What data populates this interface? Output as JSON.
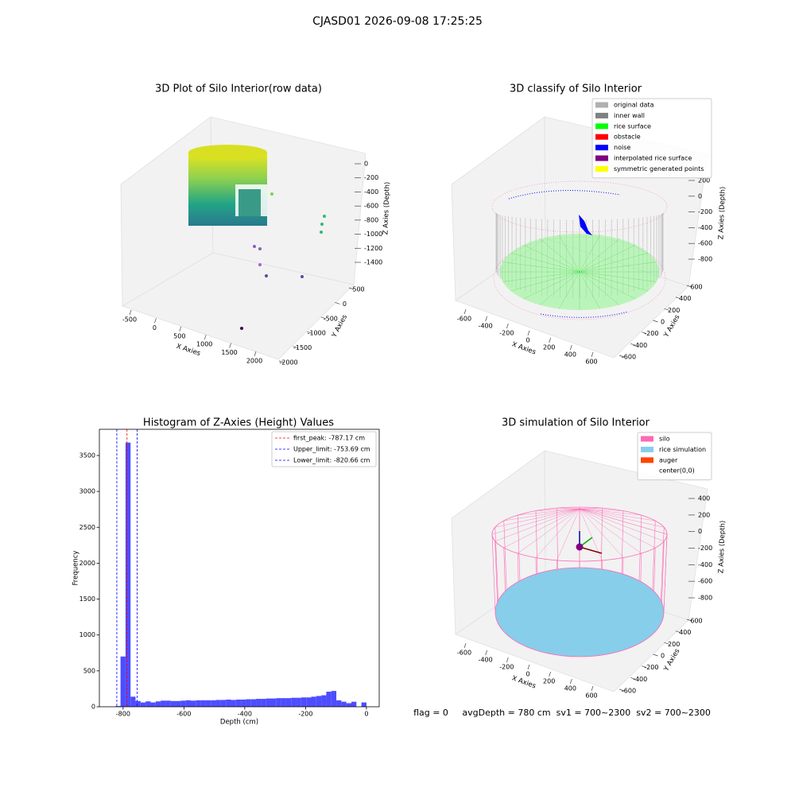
{
  "title": "CJASD01 2026-09-08 17:25:25",
  "footer": "flag = 0     avgDepth = 780 cm  sv1 = 700~2300  sv2 = 700~2300",
  "chart_data": [
    {
      "type": "scatter3d",
      "title": "3D Plot of Silo Interior(row data)",
      "xlabel": "X Axies",
      "ylabel": "Y Axies",
      "zlabel": "Z Axies (Depth)",
      "xticks": [
        -500,
        0,
        500,
        1000,
        1500,
        2000
      ],
      "yticks": [
        500,
        0,
        -500,
        -1000,
        -1500,
        -2000
      ],
      "zticks": [
        0,
        -200,
        -400,
        -600,
        -800,
        -1000,
        -1200,
        -1400
      ]
    },
    {
      "type": "scatter3d",
      "title": "3D classify of Silo Interior",
      "xlabel": "X Axies",
      "ylabel": "Y Axies",
      "zlabel": "Z Axies (Depth)",
      "xticks": [
        -600,
        -400,
        -200,
        0,
        200,
        400,
        600
      ],
      "yticks": [
        600,
        400,
        200,
        0,
        -200,
        -400,
        -600
      ],
      "zticks": [
        200,
        0,
        -200,
        -400,
        -600,
        -800
      ],
      "legend": [
        {
          "name": "original data",
          "color": "#b0b0b0"
        },
        {
          "name": "inner wall",
          "color": "#808080"
        },
        {
          "name": "rice surface",
          "color": "#00ff00"
        },
        {
          "name": "obstacle",
          "color": "#ff0000"
        },
        {
          "name": "noise",
          "color": "#0000ff"
        },
        {
          "name": "interpolated rice surface",
          "color": "#800080"
        },
        {
          "name": "symmetric generated points",
          "color": "#ffff00"
        }
      ]
    },
    {
      "type": "histogram",
      "title": "Histogram of Z-Axies (Height) Values",
      "xlabel": "Depth (cm)",
      "ylabel": "Frequency",
      "color": "#4d4dff",
      "xlim": [
        -878,
        42
      ],
      "ylim": [
        0,
        3865
      ],
      "xticks": [
        -800,
        -600,
        -400,
        -200,
        0
      ],
      "yticks": [
        0,
        500,
        1000,
        1500,
        2000,
        2500,
        3000,
        3500
      ],
      "bins": [
        -825,
        -808.5,
        -792,
        -775.5,
        -759,
        -742.5,
        -726,
        -709.5,
        -693,
        -676.5,
        -660,
        -643.5,
        -627,
        -610.5,
        -594,
        -577.5,
        -561,
        -544.5,
        -528,
        -511.5,
        -495,
        -478.5,
        -462,
        -445.5,
        -429,
        -412.5,
        -396,
        -379.5,
        -363,
        -346.5,
        -330,
        -313.5,
        -297,
        -280.5,
        -264,
        -247.5,
        -231,
        -214.5,
        -198,
        -181.5,
        -165,
        -148.5,
        -132,
        -115.5,
        -99,
        -82.5,
        -66,
        -49.5,
        -33,
        -16.5,
        0
      ],
      "counts": [
        10,
        700,
        3680,
        140,
        80,
        60,
        75,
        60,
        75,
        85,
        85,
        80,
        80,
        85,
        90,
        85,
        90,
        90,
        90,
        90,
        95,
        95,
        100,
        95,
        100,
        100,
        105,
        105,
        110,
        110,
        115,
        115,
        120,
        120,
        120,
        125,
        125,
        130,
        130,
        140,
        150,
        160,
        210,
        220,
        90,
        70,
        50,
        70,
        0,
        60
      ],
      "lines": [
        {
          "name": "first_peak: -787.17 cm",
          "value": -787.17,
          "color": "#ff0000"
        },
        {
          "name": "Upper_limit: -753.69 cm",
          "value": -753.69,
          "color": "#0000ff"
        },
        {
          "name": "Lower_limit: -820.66 cm",
          "value": -820.66,
          "color": "#0000ff"
        }
      ]
    },
    {
      "type": "scatter3d",
      "title": "3D simulation of Silo Interior",
      "xlabel": "X Axies",
      "ylabel": "Y Axies",
      "zlabel": "Z Axies (Depth)",
      "xticks": [
        -600,
        -400,
        -200,
        0,
        200,
        400,
        600
      ],
      "yticks": [
        600,
        400,
        200,
        0,
        -200,
        -400,
        -600
      ],
      "zticks": [
        400,
        200,
        0,
        -200,
        -400,
        -600,
        -800
      ],
      "legend": [
        {
          "name": "silo",
          "color": "#ff69b4"
        },
        {
          "name": "rice simulation",
          "color": "#87ceeb"
        },
        {
          "name": "auger",
          "color": "#ff4500"
        },
        {
          "name": "center(0,0)",
          "color": "#ffffff"
        }
      ]
    }
  ]
}
